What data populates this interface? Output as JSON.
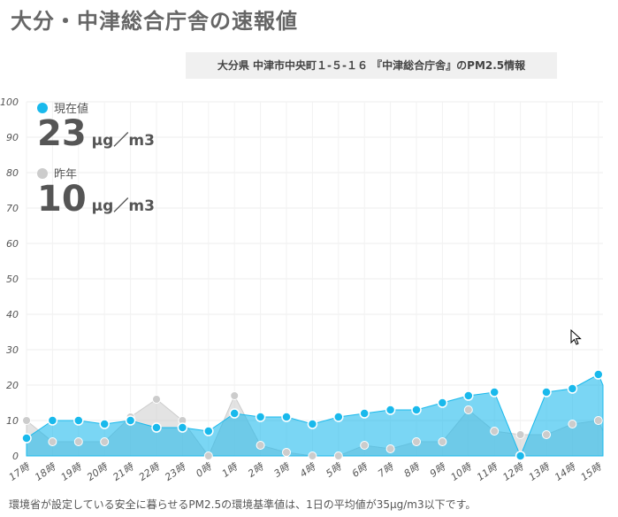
{
  "header": {
    "title": "大分・中津総合庁舎の速報値",
    "location": "大分県 中津市中央町１-５-１６ 『中津総合庁舎』のPM2.5情報"
  },
  "readouts": {
    "current": {
      "label": "現在値",
      "value": "23",
      "unit": "μg／m3",
      "color": "#19b9ec"
    },
    "last_year": {
      "label": "昨年",
      "value": "10",
      "unit": "μg／m3",
      "color": "#cccccc"
    }
  },
  "footnote": "環境省が設定している安全に暮らせるPM2.5の環境基準値は、1日の平均値が35μg/m3以下です。",
  "chart_data": {
    "type": "area",
    "categories": [
      "17時",
      "18時",
      "19時",
      "20時",
      "21時",
      "22時",
      "23時",
      "0時",
      "1時",
      "2時",
      "3時",
      "4時",
      "5時",
      "6時",
      "7時",
      "8時",
      "9時",
      "10時",
      "11時",
      "12時",
      "13時",
      "14時",
      "15時"
    ],
    "ylim": [
      0,
      100
    ],
    "yticks": [
      0,
      10,
      20,
      30,
      40,
      50,
      60,
      70,
      80,
      90,
      100
    ],
    "grid": true,
    "series": [
      {
        "name": "現在値",
        "color": "#19b9ec",
        "values": [
          5,
          10,
          10,
          9,
          10,
          8,
          8,
          7,
          12,
          11,
          11,
          9,
          11,
          12,
          13,
          13,
          15,
          17,
          18,
          0,
          18,
          19,
          23
        ]
      },
      {
        "name": "昨年",
        "color": "#cccccc",
        "values": [
          10,
          4,
          4,
          4,
          11,
          16,
          10,
          0,
          17,
          3,
          1,
          0,
          0,
          3,
          2,
          4,
          4,
          13,
          7,
          6,
          6,
          9,
          10
        ]
      }
    ]
  }
}
